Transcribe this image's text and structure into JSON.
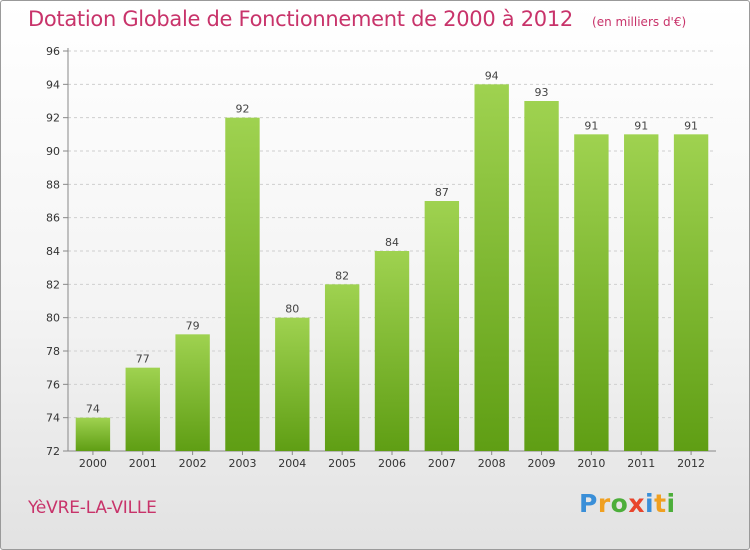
{
  "header": {
    "title": "Dotation Globale de Fonctionnement de 2000 à 2012",
    "subtitle": "(en milliers d'€)"
  },
  "footer": {
    "commune": "YèVRE-LA-VILLE",
    "brand_letters": [
      "P",
      "r",
      "o",
      "x",
      "i",
      "t",
      "i"
    ],
    "brand_colors": [
      "#3a8fd8",
      "#f0a020",
      "#4cae3a",
      "#e8452c",
      "#3a8fd8",
      "#f0a020",
      "#4cae3a"
    ]
  },
  "colors": {
    "bar_top": "#9fd250",
    "bar_bottom": "#5f9e14",
    "grid": "#cfcfcf",
    "title": "#c8336a"
  },
  "chart_data": {
    "type": "bar",
    "title": "Dotation Globale de Fonctionnement de 2000 à 2012",
    "subtitle": "(en milliers d'€)",
    "xlabel": "",
    "ylabel": "",
    "categories": [
      "2000",
      "2001",
      "2002",
      "2003",
      "2004",
      "2005",
      "2006",
      "2007",
      "2008",
      "2009",
      "2010",
      "2011",
      "2012"
    ],
    "values": [
      74,
      77,
      79,
      92,
      80,
      82,
      84,
      87,
      94,
      93,
      91,
      91,
      91
    ],
    "ylim": [
      72,
      96
    ],
    "yticks": [
      72,
      74,
      76,
      78,
      80,
      82,
      84,
      86,
      88,
      90,
      92,
      94,
      96
    ],
    "grid": true,
    "legend": "none"
  }
}
